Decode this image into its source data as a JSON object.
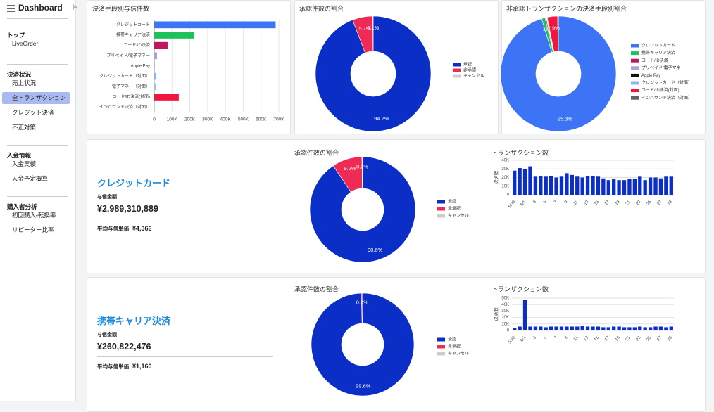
{
  "sidebar": {
    "title": "Dashboard",
    "groups": [
      {
        "heading": "トップ",
        "items": [
          "LiveOrder"
        ]
      },
      {
        "heading": "決済状況",
        "items": [
          "売上状況",
          "全トランザクション",
          "クレジット決済",
          "不正対策"
        ]
      },
      {
        "heading": "入金情報",
        "items": [
          "入金実績",
          "入金予定概算"
        ]
      },
      {
        "heading": "購入者分析",
        "items": [
          "初回購入・転換率",
          "リピーター比率"
        ]
      }
    ]
  },
  "sections": [
    {
      "title": "クレジットカード",
      "amount_label": "与信金額",
      "amount": "¥2,989,310,889",
      "avg_label": "平均与信単価",
      "avg": "¥4,366"
    },
    {
      "title": "携帯キャリア決済",
      "amount_label": "与信金額",
      "amount": "¥260,822,476",
      "avg_label": "平均与信単価",
      "avg": "¥1,160"
    }
  ],
  "chart_data": [
    {
      "type": "hbar",
      "title": "決済手段別与信件数",
      "categories": [
        "クレジットカード",
        "携帯キャリア決済",
        "コード/ID決済",
        "プリペイド/電子マネー",
        "Apple Pay",
        "クレジットカード（対面）",
        "電子マネー（対面）",
        "コード/ID決済(対面)",
        "インバウンド決済（対面）"
      ],
      "values": [
        682000,
        225000,
        75000,
        16000,
        500,
        12000,
        8000,
        138000,
        1000
      ],
      "colors": [
        "#3d74f6",
        "#1fc25a",
        "#c2185b",
        "#b39ddb",
        "#111111",
        "#8ab4f8",
        "#7fd6c8",
        "#f0163e",
        "#9e9e9e"
      ],
      "xlim": [
        0,
        700000
      ],
      "xticks": [
        0,
        {
          "value": 100000,
          "label": "100K"
        },
        {
          "value": 200000,
          "label": "200K"
        },
        {
          "value": 300000,
          "label": "300K"
        },
        {
          "value": 400000,
          "label": "400K"
        },
        {
          "value": 500000,
          "label": "500K"
        },
        {
          "value": 600000,
          "label": "600K"
        },
        {
          "value": 700000,
          "label": "700K"
        }
      ],
      "grid": true
    },
    {
      "type": "pie",
      "title": "承認件数の割合",
      "categories": [
        "承認",
        "非承認",
        "キャンセル"
      ],
      "values": [
        94.2,
        5.7,
        0.1
      ],
      "value_labels": [
        "94.2%",
        "5.7%",
        "0.1%"
      ],
      "colors": [
        "#0b2fc6",
        "#ef2a55",
        "#cccccc"
      ],
      "legend": "right"
    },
    {
      "type": "pie",
      "title": "非承認トランザクションの決済手段別割合",
      "categories": [
        "クレジットカード",
        "携帯キャリア決済",
        "コード/ID決済",
        "プリペイド/電子マネー",
        "Apple Pay",
        "クレジットカード（対面）",
        "コード/ID決済(対面)",
        "インバウンド決済（対面）"
      ],
      "values": [
        95.3,
        1.0,
        0.3,
        0.1,
        0,
        0.2,
        2.9,
        0.2
      ],
      "value_labels": [
        "95.3%",
        "1%",
        null,
        null,
        null,
        null,
        "2.9%",
        null
      ],
      "colors": [
        "#3d74f6",
        "#1fc25a",
        "#c2185b",
        "#b39ddb",
        "#111111",
        "#8ab4f8",
        "#f0163e",
        "#616161"
      ],
      "legend": "right"
    },
    {
      "type": "pie",
      "title": "承認件数の割合",
      "categories": [
        "承認",
        "非承認",
        "キャンセル"
      ],
      "values": [
        90.6,
        9.2,
        0.2
      ],
      "value_labels": [
        "90.6%",
        "9.2%",
        "0.2%"
      ],
      "colors": [
        "#0b2fc6",
        "#ef2a55",
        "#cccccc"
      ],
      "legend": "right"
    },
    {
      "type": "bar",
      "title": "トランザクション数",
      "y_label": "決済数",
      "categories": [
        "5/30",
        null,
        "6/1",
        null,
        "3",
        null,
        "5",
        null,
        "7",
        null,
        "9",
        null,
        "11",
        null,
        "13",
        null,
        "15",
        null,
        "17",
        null,
        "19",
        null,
        "21",
        null,
        "23",
        null,
        "25",
        null,
        "27",
        null,
        "29"
      ],
      "values": [
        28000,
        31000,
        30000,
        33000,
        21000,
        22000,
        21000,
        22000,
        20000,
        21000,
        25000,
        23000,
        21000,
        20000,
        22000,
        22000,
        21000,
        19000,
        17000,
        18000,
        17000,
        17000,
        18000,
        18000,
        21000,
        17000,
        20000,
        20000,
        19000,
        21000,
        21000
      ],
      "color": "#0b2fc6",
      "ylim": [
        0,
        40000
      ],
      "yticks": [
        0,
        {
          "value": 10000,
          "label": "10K"
        },
        {
          "value": 20000,
          "label": "20K"
        },
        {
          "value": 30000,
          "label": "30K"
        },
        {
          "value": 40000,
          "label": "40K"
        }
      ],
      "grid": true
    },
    {
      "type": "pie",
      "title": "承認件数の割合",
      "categories": [
        "承認",
        "非承認",
        "キャンセル"
      ],
      "values": [
        99.6,
        0.4,
        0
      ],
      "value_labels": [
        "99.6%",
        "0.4%",
        null
      ],
      "colors": [
        "#0b2fc6",
        "#ef2a55",
        "#cccccc"
      ],
      "legend": "right"
    },
    {
      "type": "bar",
      "title": "トランザクション数",
      "y_label": "決済数",
      "categories": [
        "5/30",
        null,
        "6/1",
        null,
        "3",
        null,
        "5",
        null,
        "7",
        null,
        "9",
        null,
        "11",
        null,
        "13",
        null,
        "15",
        null,
        "17",
        null,
        "19",
        null,
        "21",
        null,
        "23",
        null,
        "25",
        null,
        "27",
        null,
        "29"
      ],
      "values": [
        4000,
        6000,
        47000,
        6000,
        6000,
        6000,
        5000,
        6000,
        6000,
        6000,
        6000,
        6000,
        6000,
        7000,
        6000,
        6000,
        6000,
        5000,
        5000,
        6000,
        6000,
        5000,
        5000,
        5000,
        6000,
        5000,
        5000,
        6000,
        6000,
        5000,
        6000
      ],
      "color": "#0b2fc6",
      "ylim": [
        0,
        50000
      ],
      "yticks": [
        0,
        {
          "value": 10000,
          "label": "10K"
        },
        {
          "value": 20000,
          "label": "20K"
        },
        {
          "value": 30000,
          "label": "30K"
        },
        {
          "value": 40000,
          "label": "40K"
        },
        {
          "value": 50000,
          "label": "50K"
        }
      ],
      "grid": true
    }
  ]
}
